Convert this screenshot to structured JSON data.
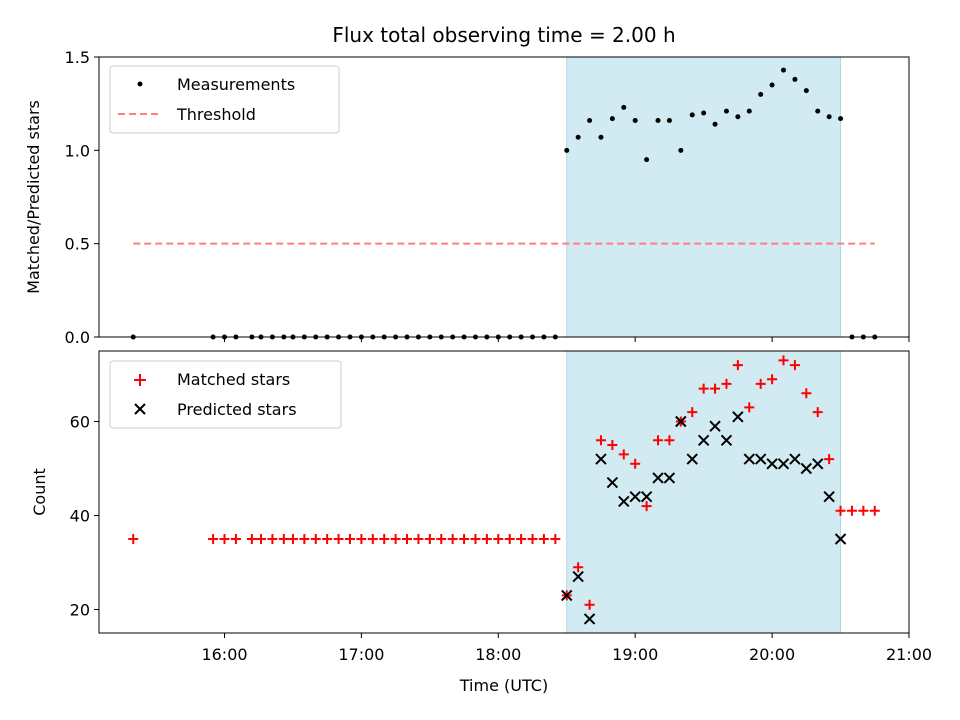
{
  "chart_data": [
    {
      "type": "scatter",
      "title": "Flux total observing time = 2.00 h",
      "xlabel": "",
      "ylabel": "Matched/Predicted stars",
      "xlim": [
        "15:05",
        "21:00"
      ],
      "ylim": [
        0,
        1.5
      ],
      "yticks": [
        "0.0",
        "0.5",
        "1.0",
        "1.5"
      ],
      "legend_position": "top-left",
      "shaded_interval": {
        "start": "18:30",
        "end": "20:30",
        "color": "#add8e6"
      },
      "series": [
        {
          "name": "Measurements",
          "marker": "dot",
          "color": "#000000",
          "x": [
            "15:20",
            "15:55",
            "16:00",
            "16:05",
            "16:12",
            "16:16",
            "16:21",
            "16:26",
            "16:30",
            "16:35",
            "16:40",
            "16:45",
            "16:50",
            "16:55",
            "17:00",
            "17:05",
            "17:10",
            "17:15",
            "17:20",
            "17:25",
            "17:30",
            "17:35",
            "17:40",
            "17:45",
            "17:50",
            "17:55",
            "18:00",
            "18:05",
            "18:10",
            "18:15",
            "18:20",
            "18:25",
            "18:30",
            "18:35",
            "18:40",
            "18:45",
            "18:50",
            "18:55",
            "19:00",
            "19:05",
            "19:10",
            "19:15",
            "19:20",
            "19:25",
            "19:30",
            "19:35",
            "19:40",
            "19:45",
            "19:50",
            "19:55",
            "20:00",
            "20:05",
            "20:10",
            "20:15",
            "20:20",
            "20:25",
            "20:30",
            "20:35",
            "20:40",
            "20:45"
          ],
          "y": [
            0,
            0,
            0,
            0,
            0,
            0,
            0,
            0,
            0,
            0,
            0,
            0,
            0,
            0,
            0,
            0,
            0,
            0,
            0,
            0,
            0,
            0,
            0,
            0,
            0,
            0,
            0,
            0,
            0,
            0,
            0,
            0,
            1.0,
            1.07,
            1.16,
            1.07,
            1.17,
            1.23,
            1.16,
            0.95,
            1.16,
            1.16,
            1.0,
            1.19,
            1.2,
            1.14,
            1.21,
            1.18,
            1.21,
            1.3,
            1.35,
            1.43,
            1.38,
            1.32,
            1.21,
            1.18,
            1.17,
            0,
            0,
            0
          ]
        },
        {
          "name": "Threshold",
          "line": "dashed",
          "color": "#ff7f7f",
          "x": [
            "15:20",
            "20:45"
          ],
          "y": [
            0.5,
            0.5
          ]
        }
      ]
    },
    {
      "type": "scatter",
      "title": "",
      "xlabel": "Time (UTC)",
      "ylabel": "Count",
      "xlim": [
        "15:05",
        "21:00"
      ],
      "ylim": [
        15,
        75
      ],
      "xticks": [
        "16:00",
        "17:00",
        "18:00",
        "19:00",
        "20:00",
        "21:00"
      ],
      "yticks": [
        "20",
        "40",
        "60"
      ],
      "legend_position": "top-left",
      "shaded_interval": {
        "start": "18:30",
        "end": "20:30",
        "color": "#add8e6"
      },
      "series": [
        {
          "name": "Matched stars",
          "marker": "plus",
          "color": "#ff0000",
          "x": [
            "15:20",
            "15:55",
            "16:00",
            "16:05",
            "16:12",
            "16:16",
            "16:21",
            "16:26",
            "16:30",
            "16:35",
            "16:40",
            "16:45",
            "16:50",
            "16:55",
            "17:00",
            "17:05",
            "17:10",
            "17:15",
            "17:20",
            "17:25",
            "17:30",
            "17:35",
            "17:40",
            "17:45",
            "17:50",
            "17:55",
            "18:00",
            "18:05",
            "18:10",
            "18:15",
            "18:20",
            "18:25",
            "18:30",
            "18:35",
            "18:40",
            "18:45",
            "18:50",
            "18:55",
            "19:00",
            "19:05",
            "19:10",
            "19:15",
            "19:20",
            "19:25",
            "19:30",
            "19:35",
            "19:40",
            "19:45",
            "19:50",
            "19:55",
            "20:00",
            "20:05",
            "20:10",
            "20:15",
            "20:20",
            "20:25",
            "20:30",
            "20:35",
            "20:40",
            "20:45"
          ],
          "y": [
            35,
            35,
            35,
            35,
            35,
            35,
            35,
            35,
            35,
            35,
            35,
            35,
            35,
            35,
            35,
            35,
            35,
            35,
            35,
            35,
            35,
            35,
            35,
            35,
            35,
            35,
            35,
            35,
            35,
            35,
            35,
            35,
            23,
            29,
            21,
            56,
            55,
            53,
            51,
            42,
            56,
            56,
            60,
            62,
            67,
            67,
            68,
            72,
            63,
            68,
            69,
            73,
            72,
            66,
            62,
            52,
            41,
            41,
            41,
            41
          ]
        },
        {
          "name": "Predicted stars",
          "marker": "x",
          "color": "#000000",
          "x": [
            "18:30",
            "18:35",
            "18:40",
            "18:45",
            "18:50",
            "18:55",
            "19:00",
            "19:05",
            "19:10",
            "19:15",
            "19:20",
            "19:25",
            "19:30",
            "19:35",
            "19:40",
            "19:45",
            "19:50",
            "19:55",
            "20:00",
            "20:05",
            "20:10",
            "20:15",
            "20:20",
            "20:25",
            "20:30"
          ],
          "y": [
            23,
            27,
            18,
            52,
            47,
            43,
            44,
            44,
            48,
            48,
            60,
            52,
            56,
            59,
            56,
            61,
            52,
            52,
            51,
            51,
            52,
            50,
            51,
            44,
            35
          ]
        }
      ]
    }
  ]
}
